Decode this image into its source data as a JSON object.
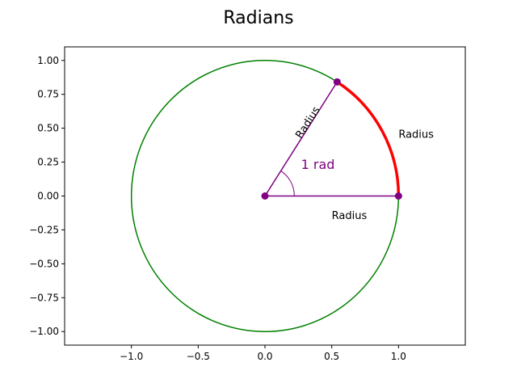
{
  "chart_data": {
    "type": "line",
    "title": "Radians",
    "xlabel": "",
    "ylabel": "",
    "xlim": [
      -1.5,
      1.5
    ],
    "ylim": [
      -1.1,
      1.1
    ],
    "xticks": [
      -1.0,
      -0.5,
      0.0,
      0.5,
      1.0
    ],
    "xtick_labels": [
      "−1.0",
      "−0.5",
      "0.0",
      "0.5",
      "1.0"
    ],
    "yticks": [
      1.0,
      0.75,
      0.5,
      0.25,
      0.0,
      -0.25,
      -0.5,
      -0.75,
      -1.0
    ],
    "ytick_labels": [
      "1.00",
      "0.75",
      "0.50",
      "0.25",
      "0.00",
      "−0.25",
      "−0.50",
      "−0.75",
      "−1.00"
    ],
    "grid": false,
    "circle": {
      "center": [
        0,
        0
      ],
      "radius": 1,
      "color": "#008000"
    },
    "angle_rad": 1,
    "radius_lines": [
      {
        "from": [
          0,
          0
        ],
        "to": [
          1,
          0
        ],
        "color": "#800080"
      },
      {
        "from": [
          0,
          0
        ],
        "to": [
          0.5403,
          0.8415
        ],
        "color": "#800080"
      }
    ],
    "points": [
      {
        "x": 0,
        "y": 0,
        "color": "#800080"
      },
      {
        "x": 1,
        "y": 0,
        "color": "#800080"
      },
      {
        "x": 0.5403,
        "y": 0.8415,
        "color": "#800080"
      }
    ],
    "arc": {
      "from_angle": 0,
      "to_angle": 1,
      "radius": 1,
      "color": "#ff0000"
    },
    "angle_marker": {
      "radius": 0.22,
      "from_angle": 0,
      "to_angle": 1,
      "color": "#800080"
    },
    "annotations": [
      {
        "text": "Radius",
        "x": 0.5,
        "y": -0.17,
        "rotation": 0
      },
      {
        "text": "Radius",
        "x": 0.27,
        "y": 0.42,
        "rotation": -57.3
      },
      {
        "text": "Radius",
        "x": 1.0,
        "y": 0.43,
        "rotation": 0
      },
      {
        "text": "1 rad",
        "x": 0.27,
        "y": 0.2,
        "rotation": 0,
        "color": "#800080"
      }
    ]
  }
}
